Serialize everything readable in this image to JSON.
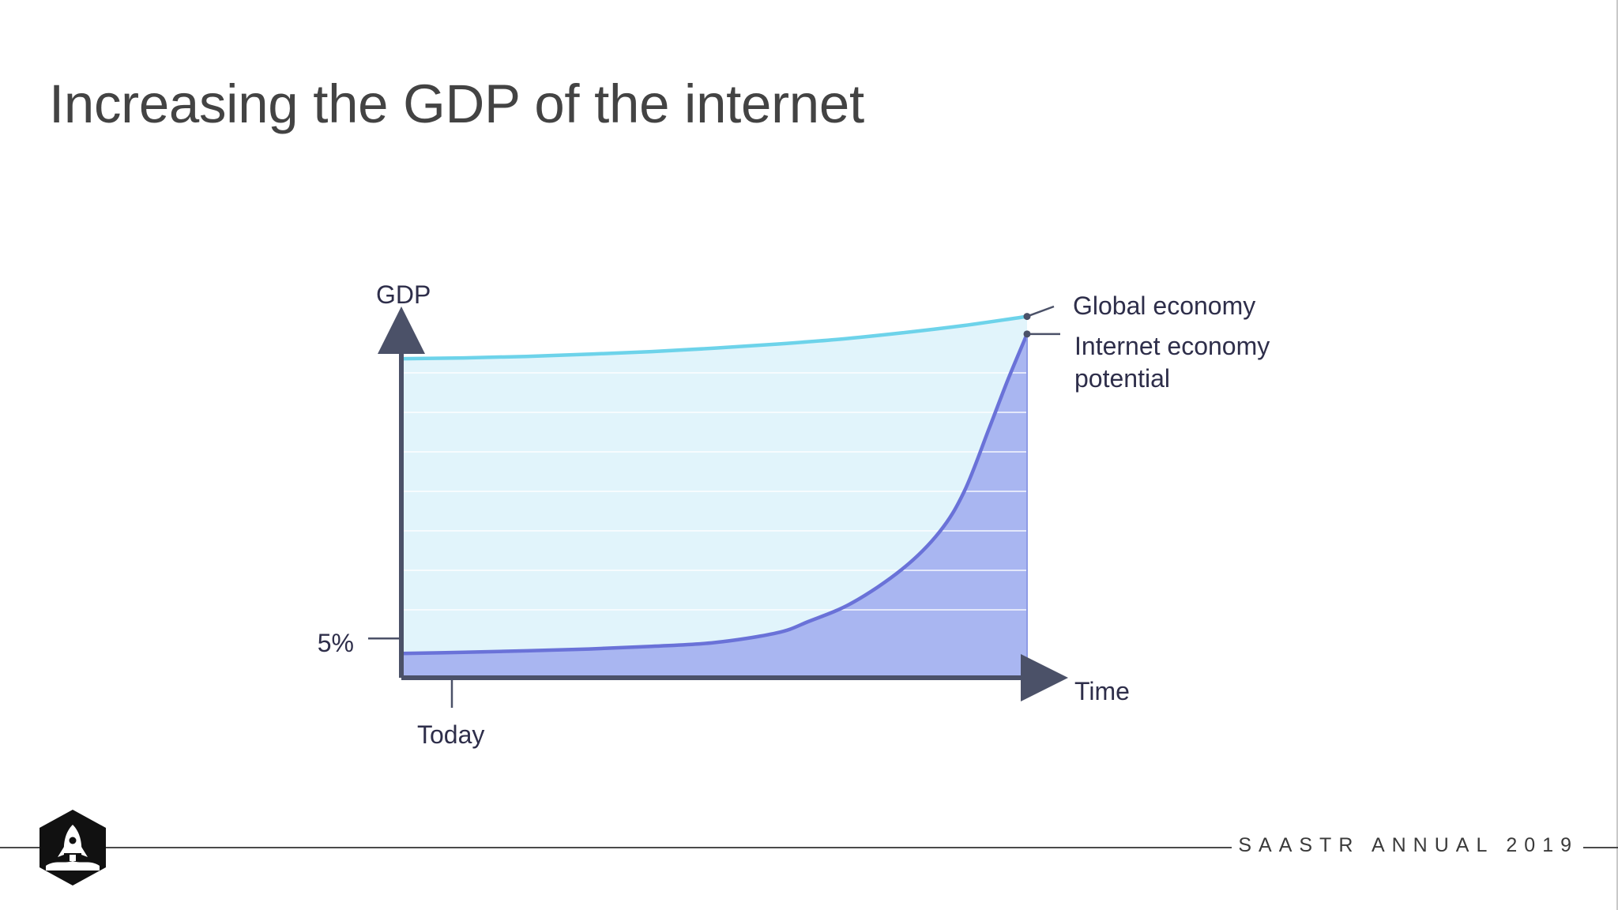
{
  "slide": {
    "title": "Increasing the GDP of the internet",
    "footer": "SAASTR ANNUAL 2019",
    "logo_icon": "rocket-icon"
  },
  "colors": {
    "axis": "#4b5168",
    "global_line": "#6dd3ea",
    "global_fill": "#e1f4fb",
    "internet_line": "#6a72d8",
    "internet_fill": "#a9b6f1",
    "text": "#2e2e4a"
  },
  "chart_data": {
    "type": "area",
    "ylabel": "GDP",
    "xlabel": "Time",
    "y_tick": "5%",
    "x_tick": "Today",
    "grid": true,
    "series": [
      {
        "name": "Global economy",
        "x": [
          0,
          0.1,
          0.2,
          0.3,
          0.4,
          0.5,
          0.6,
          0.7,
          0.8,
          0.9,
          1.0
        ],
        "values": [
          0.854,
          0.856,
          0.86,
          0.866,
          0.873,
          0.882,
          0.893,
          0.906,
          0.923,
          0.943,
          0.967
        ]
      },
      {
        "name": "Internet economy potential",
        "label_lines": [
          "Internet economy",
          "potential"
        ],
        "x": [
          0,
          0.1,
          0.2,
          0.3,
          0.4,
          0.5,
          0.6,
          0.65,
          0.72,
          0.8,
          0.86,
          0.9,
          0.94,
          0.97,
          1.0
        ],
        "values": [
          0.065,
          0.068,
          0.072,
          0.077,
          0.084,
          0.094,
          0.12,
          0.15,
          0.2,
          0.29,
          0.39,
          0.5,
          0.67,
          0.8,
          0.92
        ]
      }
    ]
  }
}
